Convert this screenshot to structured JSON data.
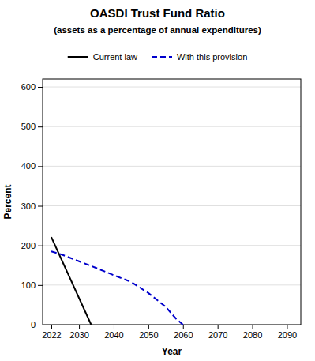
{
  "chart_data": {
    "type": "line",
    "title": "OASDI Trust Fund Ratio",
    "subtitle": "(assets as a percentage of annual expenditures)",
    "x_label": "Year",
    "y_label": "Percent",
    "xlim": [
      2019.5,
      2094
    ],
    "ylim": [
      0,
      620
    ],
    "xticks": [
      2022,
      2030,
      2040,
      2050,
      2060,
      2070,
      2080,
      2090
    ],
    "yticks": [
      0,
      100,
      200,
      300,
      400,
      500,
      600
    ],
    "grid": true,
    "legend": "top",
    "series": [
      {
        "name": "Current law",
        "color": "#000000",
        "line_style": "solid",
        "x": [
          2022,
          2033.5
        ],
        "values": [
          221,
          0
        ]
      },
      {
        "name": "With this provision",
        "color": "#0000cc",
        "line_style": "dashed",
        "x": [
          2022,
          2025,
          2030,
          2035,
          2040,
          2045,
          2050,
          2055,
          2058,
          2060
        ],
        "values": [
          185,
          177,
          160,
          143,
          125,
          108,
          80,
          45,
          15,
          0
        ]
      }
    ]
  }
}
